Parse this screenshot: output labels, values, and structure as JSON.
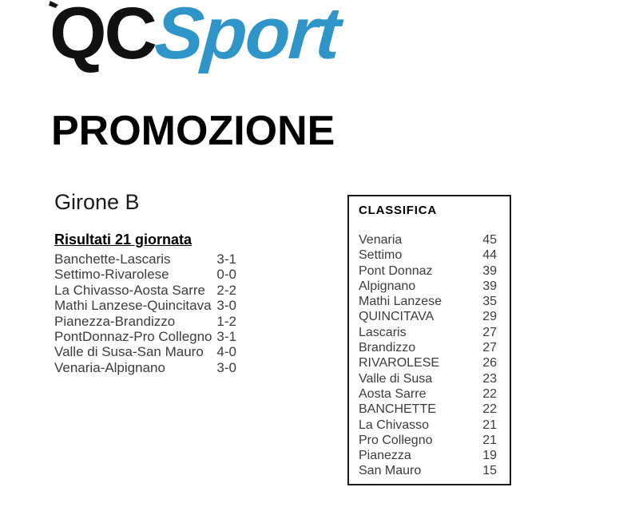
{
  "logo": {
    "qc": "QC",
    "sport": "Sport"
  },
  "heading": "PROMOZIONE",
  "girone": "Girone B",
  "results": {
    "title": "Risultati 21 giornata",
    "matches": [
      {
        "match": "Banchette-Lascaris",
        "score": "3-1"
      },
      {
        "match": "Settimo-Rivarolese",
        "score": "0-0"
      },
      {
        "match": "La Chivasso-Aosta Sarre",
        "score": "2-2"
      },
      {
        "match": "Mathi Lanzese-Quincitava",
        "score": "3-0"
      },
      {
        "match": "Pianezza-Brandizzo",
        "score": "1-2"
      },
      {
        "match": "PontDonnaz-Pro Collegno",
        "score": "3-1"
      },
      {
        "match": "Valle di Susa-San Mauro",
        "score": "4-0"
      },
      {
        "match": "Venaria-Alpignano",
        "score": "3-0"
      }
    ]
  },
  "classifica": {
    "title": "CLASSIFICA",
    "rows": [
      {
        "team": "Venaria",
        "points": "45"
      },
      {
        "team": "Settimo",
        "points": "44"
      },
      {
        "team": "Pont Donnaz",
        "points": "39"
      },
      {
        "team": "Alpignano",
        "points": "39"
      },
      {
        "team": "Mathi Lanzese",
        "points": "35"
      },
      {
        "team": "QUINCITAVA",
        "points": "29"
      },
      {
        "team": "Lascaris",
        "points": "27"
      },
      {
        "team": "Brandizzo",
        "points": "27"
      },
      {
        "team": "RIVAROLESE",
        "points": "26"
      },
      {
        "team": "Valle di Susa",
        "points": "23"
      },
      {
        "team": "Aosta Sarre",
        "points": "22"
      },
      {
        "team": "BANCHETTE",
        "points": "22"
      },
      {
        "team": "La Chivasso",
        "points": "21"
      },
      {
        "team": "Pro Collegno",
        "points": "21"
      },
      {
        "team": "Pianezza",
        "points": "19"
      },
      {
        "team": "San Mauro",
        "points": "15"
      }
    ]
  },
  "colors": {
    "brand_blue": "#2f95c9",
    "body_text": "#3c3c3c"
  }
}
